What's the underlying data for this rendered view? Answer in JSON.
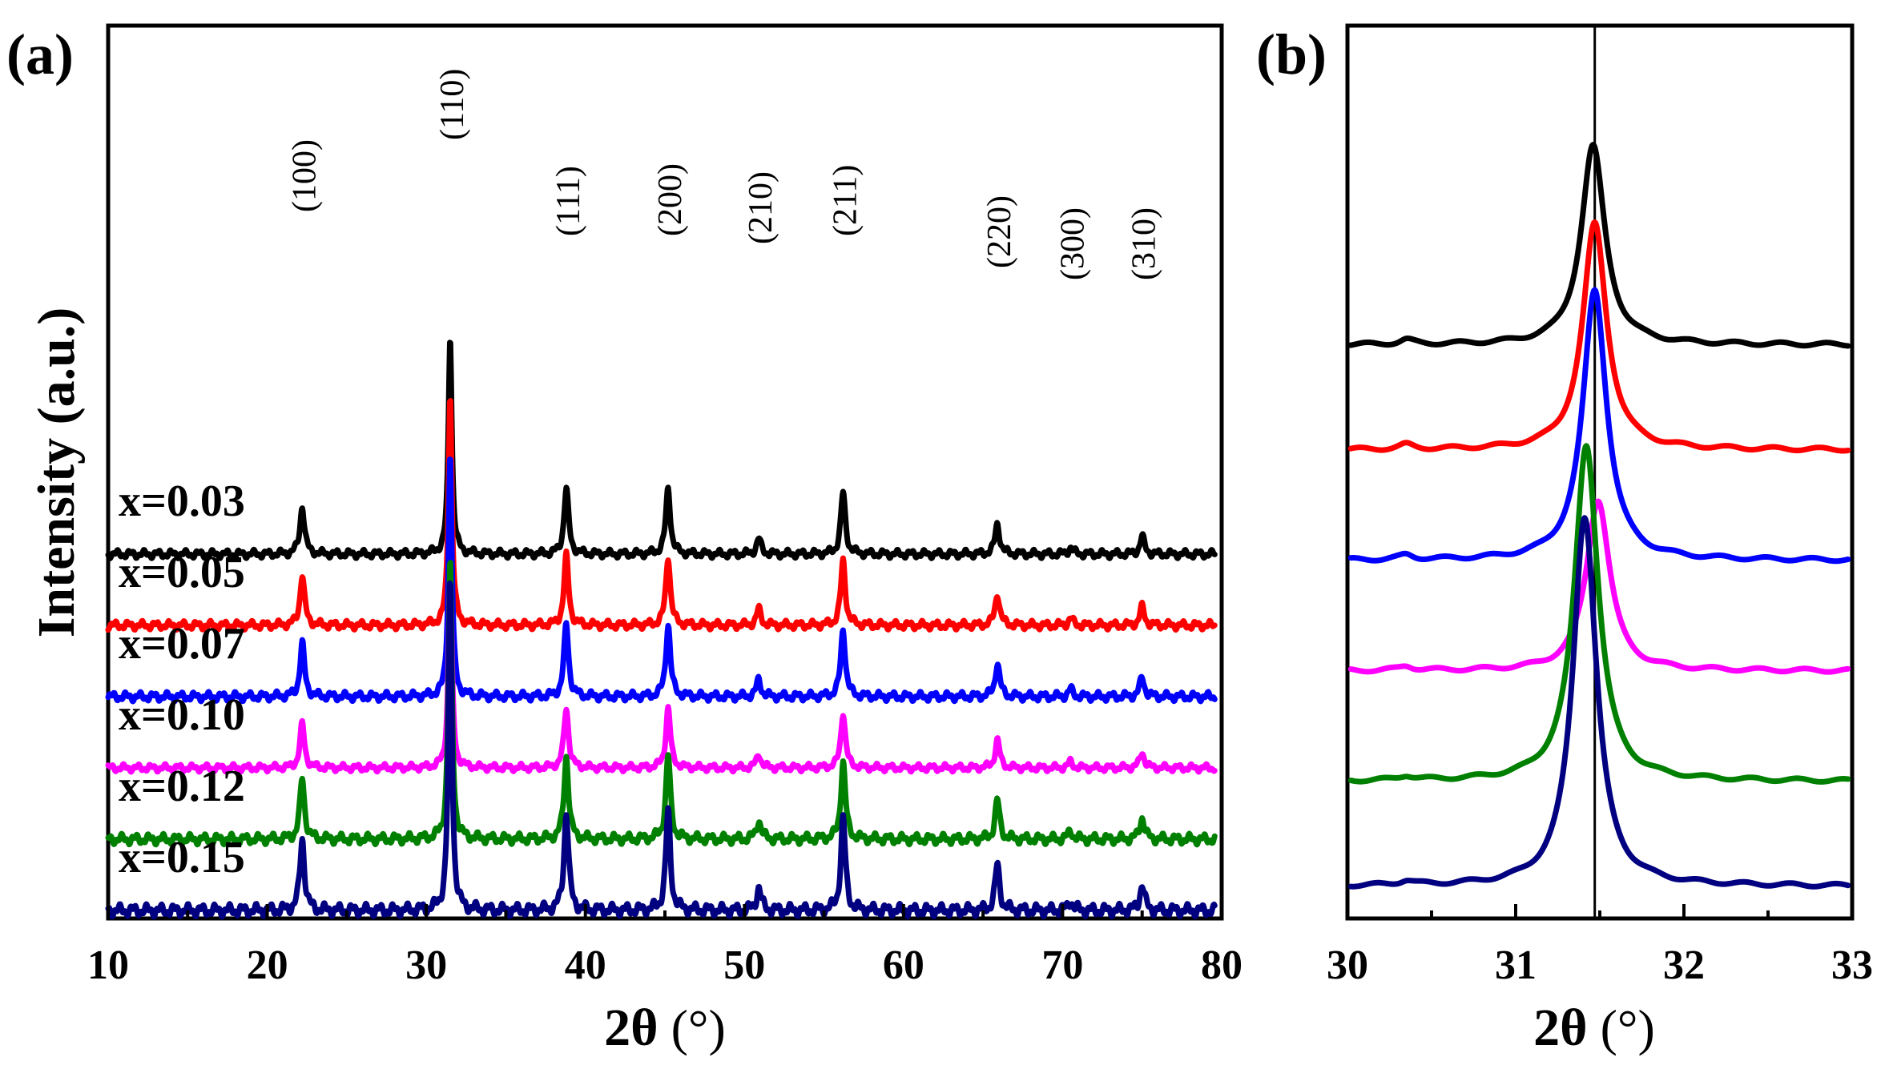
{
  "chart_data": [
    {
      "type": "line",
      "panel_label": "(a)",
      "xlabel_main": "2θ",
      "xlabel_unit": "(°)",
      "ylabel": "Intensity (a.u.)",
      "xlim": [
        10,
        80
      ],
      "xticks": [
        10,
        20,
        30,
        40,
        50,
        60,
        70,
        80
      ],
      "yticks": [],
      "peaks": [
        {
          "hkl": "(100)",
          "two_theta": 22.2,
          "rel": 0.22
        },
        {
          "hkl": "(110)",
          "two_theta": 31.5,
          "rel": 1.0
        },
        {
          "hkl": "(111)",
          "two_theta": 38.8,
          "rel": 0.3
        },
        {
          "hkl": "(200)",
          "two_theta": 45.2,
          "rel": 0.3
        },
        {
          "hkl": "(210)",
          "two_theta": 50.9,
          "rel": 0.07
        },
        {
          "hkl": "(211)",
          "two_theta": 56.2,
          "rel": 0.28
        },
        {
          "hkl": "(220)",
          "two_theta": 65.9,
          "rel": 0.14
        },
        {
          "hkl": "(300)",
          "two_theta": 70.5,
          "rel": 0.03
        },
        {
          "hkl": "(310)",
          "two_theta": 75.0,
          "rel": 0.08
        }
      ],
      "series": [
        {
          "name": "x=0.03",
          "color": "#000000",
          "baseline": 2.5,
          "peak_scale": 2.8
        },
        {
          "name": "x=0.05",
          "color": "#ff0000",
          "baseline": 2.0,
          "peak_scale": 2.95
        },
        {
          "name": "x=0.07",
          "color": "#0000ff",
          "baseline": 1.5,
          "peak_scale": 3.1
        },
        {
          "name": "x=0.10",
          "color": "#ff00ff",
          "baseline": 1.0,
          "peak_scale": 2.55
        },
        {
          "name": "x=0.12",
          "color": "#008000",
          "baseline": 0.5,
          "peak_scale": 3.55
        },
        {
          "name": "x=0.15",
          "color": "#000080",
          "baseline": 0.0,
          "peak_scale": 4.2
        }
      ]
    },
    {
      "type": "line",
      "panel_label": "(b)",
      "xlabel_main": "2θ",
      "xlabel_unit": "(°)",
      "xlim": [
        30,
        33
      ],
      "xticks": [
        30,
        31,
        32,
        33
      ],
      "reference_line": 31.47,
      "series": [
        {
          "name": "x=0.03",
          "color": "#000000",
          "baseline": 4.9,
          "center": 31.46,
          "height": 1.8
        },
        {
          "name": "x=0.05",
          "color": "#ff0000",
          "baseline": 3.95,
          "center": 31.47,
          "height": 2.05
        },
        {
          "name": "x=0.07",
          "color": "#0000ff",
          "baseline": 2.95,
          "center": 31.47,
          "height": 2.45
        },
        {
          "name": "x=0.10",
          "color": "#ff00ff",
          "baseline": 1.95,
          "center": 31.49,
          "height": 1.55
        },
        {
          "name": "x=0.12",
          "color": "#008000",
          "baseline": 0.95,
          "center": 31.42,
          "height": 3.05
        },
        {
          "name": "x=0.15",
          "color": "#000080",
          "baseline": 0.0,
          "center": 31.41,
          "height": 3.35
        }
      ]
    }
  ]
}
